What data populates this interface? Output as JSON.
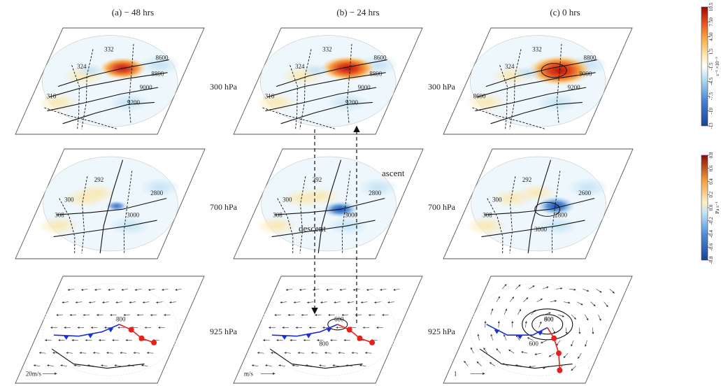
{
  "columns": [
    {
      "title": "(a)  − 48 hrs"
    },
    {
      "title": "(b)  − 24 hrs"
    },
    {
      "title": "(c)   0 hrs"
    }
  ],
  "levels": [
    "300 hPa",
    "700 hPa",
    "925 hPa"
  ],
  "annotations": {
    "ascent": "ascent",
    "descent": "descent"
  },
  "colorbar_top": {
    "ticks": [
      "-13",
      "-10",
      "-7.5",
      "-4.5",
      "-1.5",
      "1.5",
      "4.50",
      "7.50",
      "10.5"
    ],
    "units": "s⁻¹ ×10⁻⁵"
  },
  "colorbar_bottom": {
    "ticks": [
      "-0.8",
      "-0.6",
      "-0.4",
      "-0.2",
      "0.0",
      "0.2",
      "0.4",
      "0.6",
      "0.8"
    ],
    "units": "Pa s⁻¹"
  },
  "wind_scale_labels": [
    "20m/s",
    "m/s",
    "1"
  ],
  "colors": {
    "warm_front": "#e8201c",
    "cold_front": "#1a2fd6",
    "positive_strong": "#c0190f",
    "negative_strong": "#2d5fc4",
    "weak_positive": "#fbe7b0",
    "weak_negative": "#bfe0f4"
  },
  "panels": [
    {
      "level": "300 hPa",
      "col": 0,
      "labels": [
        "332",
        "324",
        "316",
        "8600",
        "8800",
        "9000",
        "9200"
      ]
    },
    {
      "level": "300 hPa",
      "col": 1,
      "labels": [
        "332",
        "324",
        "316",
        "8600",
        "8800",
        "9000",
        "9200"
      ]
    },
    {
      "level": "300 hPa",
      "col": 2,
      "labels": [
        "332",
        "324",
        "8600",
        "8800",
        "9000",
        "9200"
      ]
    },
    {
      "level": "700 hPa",
      "col": 0,
      "labels": [
        "292",
        "300",
        "308",
        "2800",
        "3000"
      ]
    },
    {
      "level": "700 hPa",
      "col": 1,
      "labels": [
        "292",
        "300",
        "308",
        "2800",
        "3000"
      ]
    },
    {
      "level": "700 hPa",
      "col": 2,
      "labels": [
        "292",
        "300",
        "308",
        "2600",
        "2800",
        "3000"
      ]
    },
    {
      "level": "925 hPa",
      "col": 0,
      "labels": [
        "800"
      ]
    },
    {
      "level": "925 hPa",
      "col": 1,
      "labels": [
        "600",
        "800"
      ]
    },
    {
      "level": "925 hPa",
      "col": 2,
      "labels": [
        "600",
        "600",
        "800"
      ]
    }
  ]
}
